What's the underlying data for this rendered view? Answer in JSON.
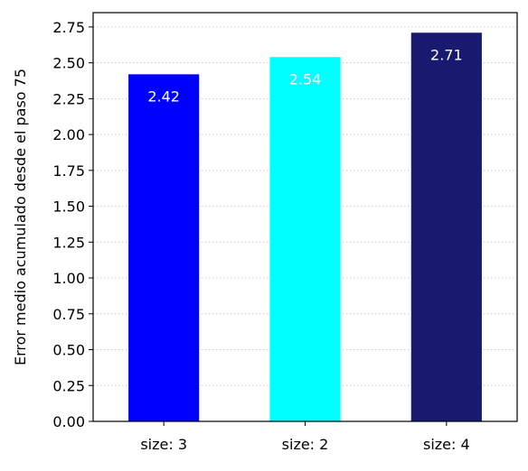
{
  "chart_data": {
    "type": "bar",
    "title": "",
    "xlabel": "",
    "ylabel": "Error medio acumulado desde el paso 75",
    "categories": [
      "size: 3",
      "size: 2",
      "size: 4"
    ],
    "values": [
      2.42,
      2.54,
      2.71
    ],
    "value_labels": [
      "2.42",
      "2.54",
      "2.71"
    ],
    "bar_colors": [
      "#0000ff",
      "#00ffff",
      "#191970"
    ],
    "ylim": [
      0,
      2.85
    ],
    "yticks": [
      0.0,
      0.25,
      0.5,
      0.75,
      1.0,
      1.25,
      1.5,
      1.75,
      2.0,
      2.25,
      2.5,
      2.75
    ],
    "ytick_labels": [
      "0.00",
      "0.25",
      "0.50",
      "0.75",
      "1.00",
      "1.25",
      "1.50",
      "1.75",
      "2.00",
      "2.25",
      "2.50",
      "2.75"
    ],
    "grid": "y-dotted",
    "legend": "none",
    "value_label_color": "#ffffff",
    "grid_color": "#cccccc"
  }
}
